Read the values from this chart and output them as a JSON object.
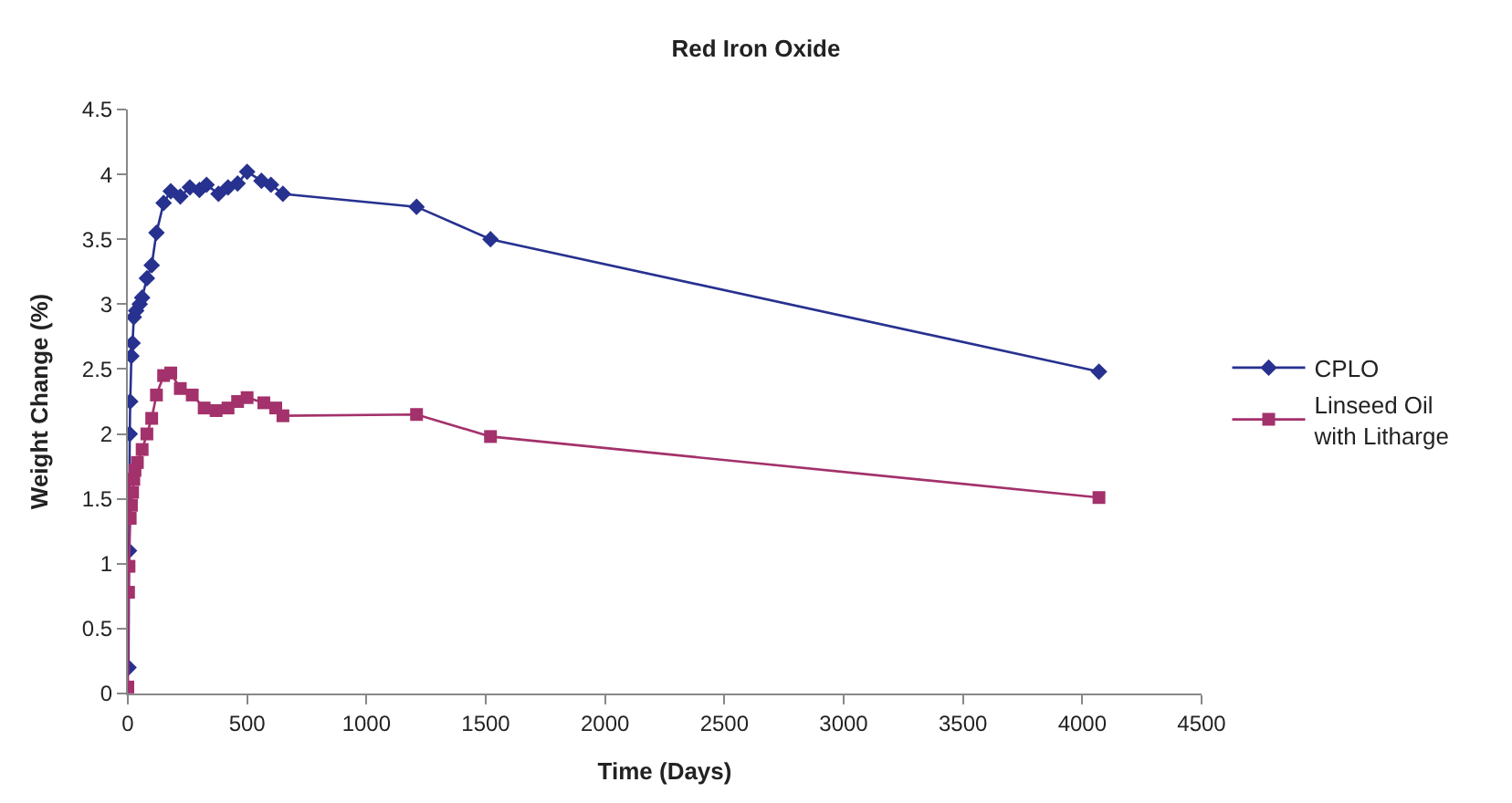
{
  "chart_data": {
    "type": "line",
    "title": "Red Iron Oxide",
    "xlabel": "Time (Days)",
    "ylabel": "Weight Change (%)",
    "xlim": [
      0,
      4500
    ],
    "xticks": [
      0,
      500,
      1000,
      1500,
      2000,
      2500,
      3000,
      3500,
      4000,
      4500
    ],
    "ylim": [
      0,
      4.5
    ],
    "yticks": [
      0,
      0.5,
      1,
      1.5,
      2,
      2.5,
      3,
      3.5,
      4,
      4.5
    ],
    "grid": false,
    "legend": "right",
    "line_style": "solid",
    "series": [
      {
        "name": "CPLO",
        "color": "#27318f",
        "marker": "diamond",
        "x": [
          3,
          5,
          8,
          10,
          15,
          20,
          25,
          35,
          50,
          60,
          80,
          100,
          120,
          150,
          180,
          220,
          260,
          300,
          330,
          380,
          420,
          460,
          500,
          560,
          600,
          650,
          1210,
          1520,
          4070
        ],
        "values": [
          0.2,
          1.1,
          2.0,
          2.25,
          2.6,
          2.7,
          2.9,
          2.95,
          3.0,
          3.05,
          3.2,
          3.3,
          3.55,
          3.78,
          3.87,
          3.83,
          3.9,
          3.88,
          3.92,
          3.85,
          3.9,
          3.93,
          4.02,
          3.95,
          3.92,
          3.85,
          3.75,
          3.5,
          2.48
        ]
      },
      {
        "name": "Linseed Oil with Litharge",
        "color": "#a3316b",
        "marker": "square",
        "x": [
          0,
          3,
          5,
          10,
          15,
          20,
          25,
          30,
          40,
          60,
          80,
          100,
          120,
          150,
          180,
          220,
          270,
          320,
          370,
          420,
          460,
          500,
          570,
          620,
          650,
          1210,
          1520,
          4070
        ],
        "values": [
          0.05,
          0.78,
          0.98,
          1.35,
          1.45,
          1.55,
          1.65,
          1.72,
          1.78,
          1.88,
          2.0,
          2.12,
          2.3,
          2.45,
          2.47,
          2.35,
          2.3,
          2.2,
          2.18,
          2.2,
          2.25,
          2.28,
          2.24,
          2.2,
          2.14,
          2.15,
          1.98,
          1.51
        ]
      }
    ]
  }
}
